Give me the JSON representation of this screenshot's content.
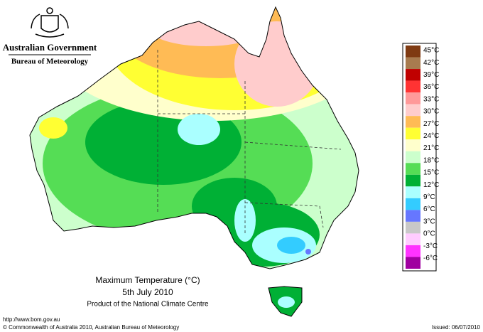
{
  "header": {
    "title": "Australian Government",
    "subtitle": "Bureau of Meteorology"
  },
  "map": {
    "title": "Maximum Temperature (°C)",
    "date": "5th July 2010",
    "product": "Product of the National Climate Centre"
  },
  "legend": {
    "labels": [
      "45°C",
      "42°C",
      "39°C",
      "36°C",
      "33°C",
      "30°C",
      "27°C",
      "24°C",
      "21°C",
      "18°C",
      "15°C",
      "12°C",
      "9°C",
      "6°C",
      "3°C",
      "0°C",
      "-3°C",
      "-6°C"
    ],
    "colors": [
      "#7f3a12",
      "#a87b4f",
      "#c00000",
      "#ff3333",
      "#ff9999",
      "#ffcccc",
      "#ffbb55",
      "#ffff33",
      "#ffffcc",
      "#ccffcc",
      "#55dd55",
      "#00b035",
      "#aaffff",
      "#33ccff",
      "#6677ff",
      "#c8c8c8",
      "#ffccff",
      "#ff33ff",
      "#a000a0"
    ]
  },
  "footer": {
    "url": "http://www.bom.gov.au",
    "copyright": "© Commonwealth of Australia 2010, Australian Bureau of Meteorology",
    "issued": "Issued: 06/07/2010"
  }
}
